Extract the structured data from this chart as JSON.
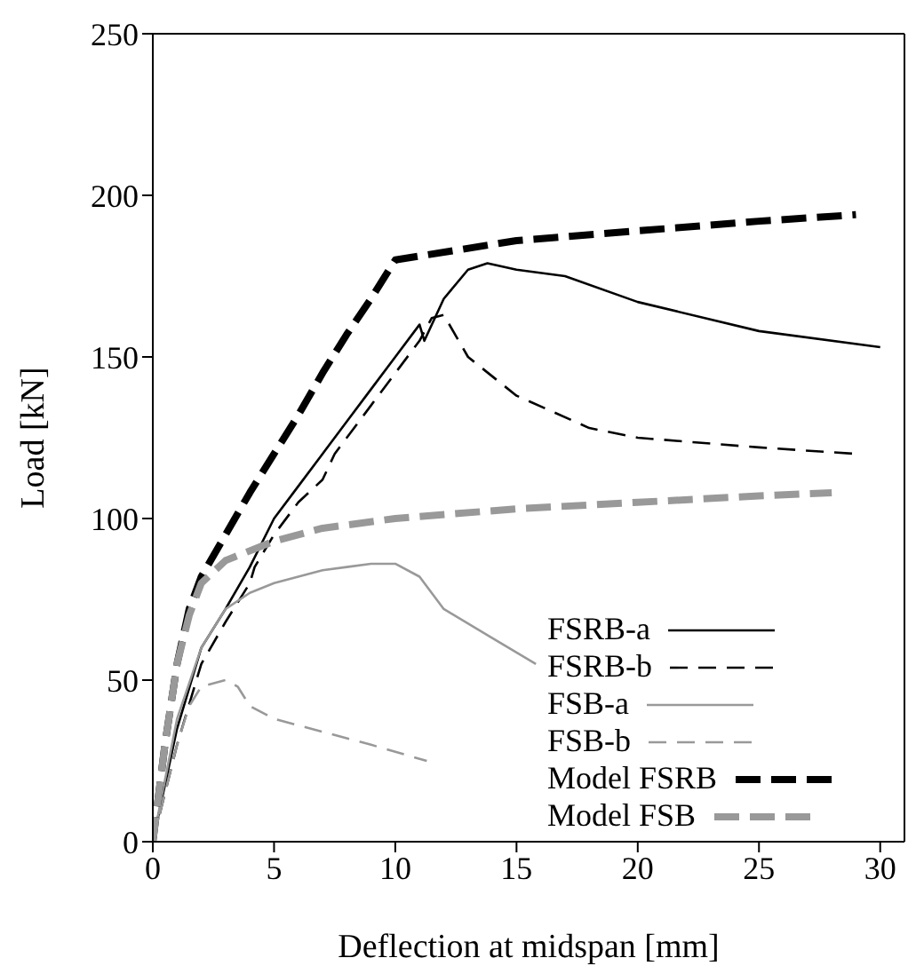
{
  "chart_data": {
    "type": "line",
    "xlabel": "Deflection at midspan [mm]",
    "ylabel": "Load [kN]",
    "xlim": [
      0,
      31
    ],
    "xticks": [
      0,
      5,
      10,
      15,
      20,
      25,
      30
    ],
    "ylim": [
      0,
      250
    ],
    "yticks": [
      0,
      50,
      100,
      150,
      200,
      250
    ],
    "grid": false,
    "legend": "bottom right",
    "marker": "none",
    "series": [
      {
        "name": "FSRB-a",
        "color": "#000000",
        "line_style": "solid",
        "x": [
          0,
          1,
          2,
          3,
          4,
          5,
          6,
          7,
          8,
          9,
          10,
          11,
          11.2,
          12,
          13,
          13.8,
          15,
          17,
          20,
          25,
          30
        ],
        "values": [
          0,
          35,
          60,
          72,
          85,
          100,
          110,
          120,
          130,
          140,
          150,
          160,
          155,
          168,
          177,
          179,
          177,
          175,
          167,
          158,
          153
        ]
      },
      {
        "name": "FSRB-b",
        "color": "#000000",
        "line_style": "dashed",
        "x": [
          0,
          1,
          2,
          3,
          4,
          4.2,
          5,
          6,
          7,
          7.5,
          8,
          9,
          10,
          11,
          11.5,
          12,
          13,
          15,
          18,
          20,
          25,
          29
        ],
        "values": [
          0,
          30,
          55,
          68,
          80,
          85,
          95,
          105,
          112,
          120,
          125,
          135,
          145,
          155,
          162,
          163,
          150,
          138,
          128,
          125,
          122,
          120
        ]
      },
      {
        "name": "FSB-a",
        "color": "#999999",
        "line_style": "solid",
        "x": [
          0,
          1,
          2,
          3,
          4,
          5,
          6,
          7,
          8,
          9,
          10,
          11,
          12,
          14,
          15.8
        ],
        "values": [
          0,
          38,
          60,
          72,
          77,
          80,
          82,
          84,
          85,
          86,
          86,
          82,
          72,
          63,
          55
        ]
      },
      {
        "name": "FSB-b",
        "color": "#999999",
        "line_style": "dashed",
        "x": [
          0,
          1,
          1.5,
          2,
          3,
          3.5,
          4,
          5,
          7,
          9,
          11.3
        ],
        "values": [
          0,
          30,
          42,
          48,
          50,
          48,
          42,
          38,
          34,
          30,
          25
        ]
      },
      {
        "name": "Model FSRB",
        "color": "#000000",
        "line_style": "dashed",
        "x": [
          0,
          0.5,
          1,
          1.5,
          2,
          3,
          4,
          5,
          6,
          7,
          8,
          9,
          10,
          15,
          20,
          25,
          29
        ],
        "values": [
          0,
          30,
          55,
          72,
          82,
          95,
          108,
          120,
          132,
          145,
          157,
          168,
          180,
          186,
          189,
          192,
          194
        ]
      },
      {
        "name": "Model FSB",
        "color": "#999999",
        "line_style": "dashed",
        "x": [
          0,
          0.5,
          1,
          1.5,
          2,
          3,
          5,
          7,
          10,
          15,
          20,
          25,
          28
        ],
        "values": [
          0,
          30,
          55,
          70,
          80,
          87,
          93,
          97,
          100,
          103,
          105,
          107,
          108
        ]
      }
    ]
  }
}
